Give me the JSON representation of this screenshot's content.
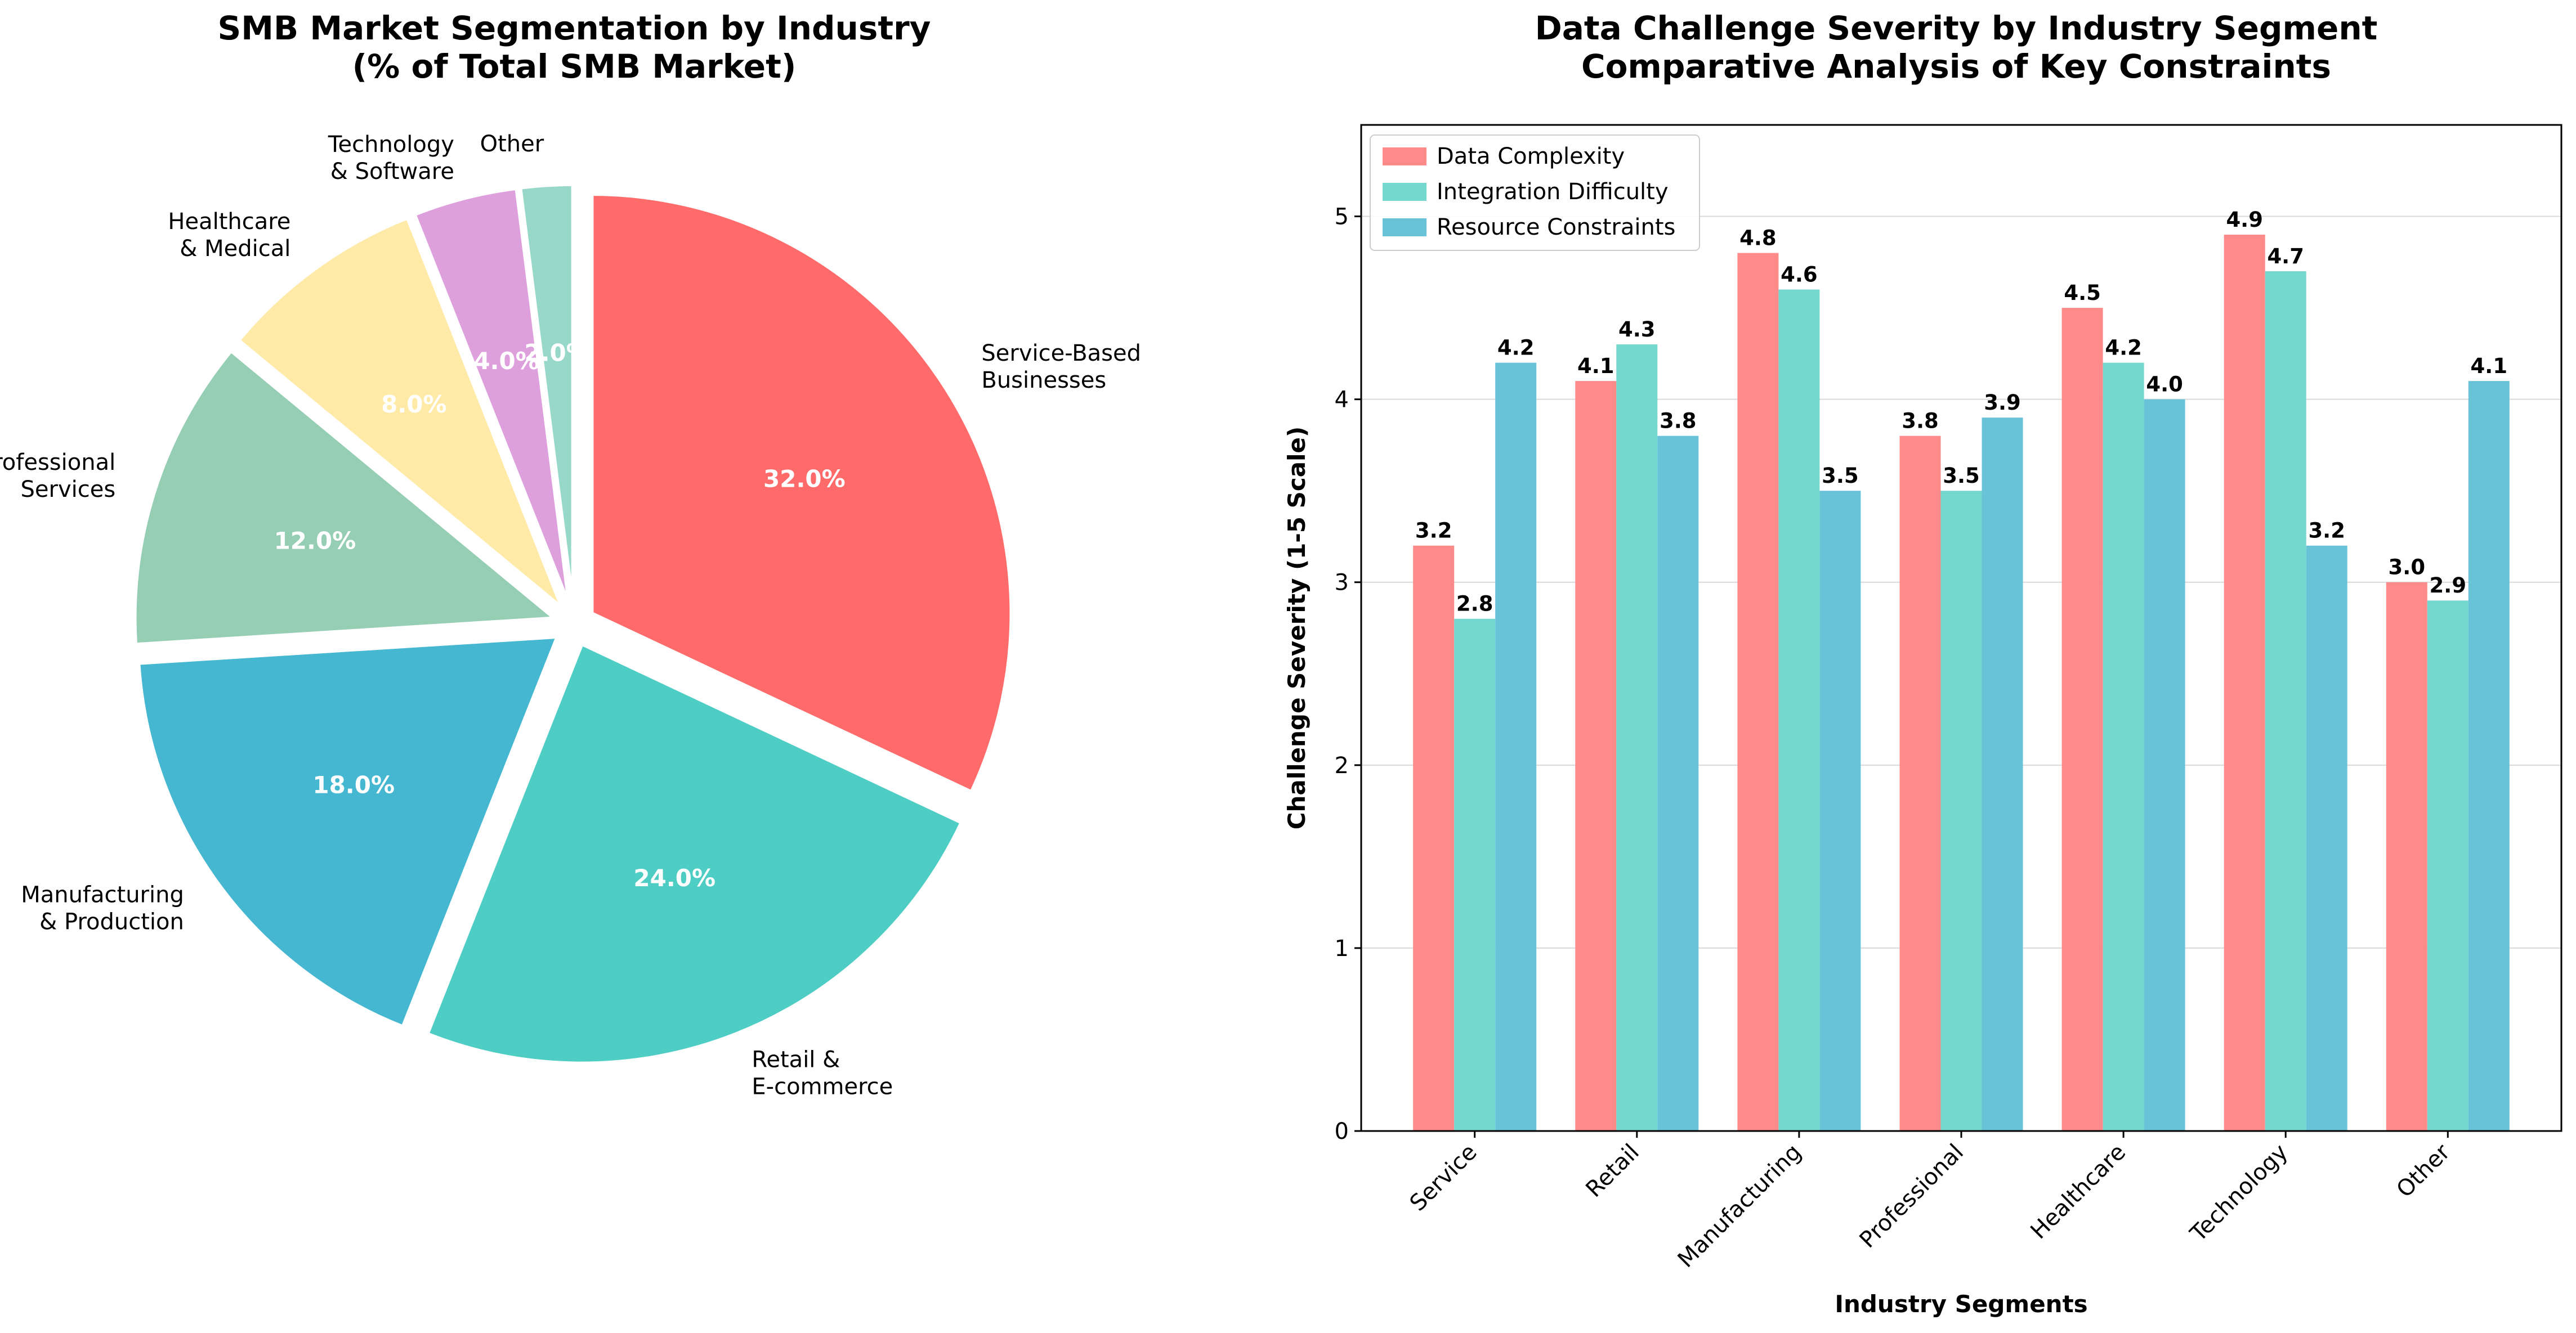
{
  "chart_data": [
    {
      "type": "pie",
      "title": "SMB Market Segmentation by Industry\n(% of Total SMB Market)",
      "start_angle_deg": 90,
      "direction": "clockwise",
      "slices": [
        {
          "label": "Service-Based\nBusinesses",
          "value": 32.0,
          "pct_label": "32.0%",
          "color": "#FF6B6B",
          "explode": 0.05
        },
        {
          "label": "Retail &\nE-commerce",
          "value": 24.0,
          "pct_label": "24.0%",
          "color": "#4ECDC4",
          "explode": 0.05
        },
        {
          "label": "Manufacturing\n& Production",
          "value": 18.0,
          "pct_label": "18.0%",
          "color": "#45B7D1",
          "explode": 0.05
        },
        {
          "label": "Professional\nServices",
          "value": 12.0,
          "pct_label": "12.0%",
          "color": "#96CEB4",
          "explode": 0.05
        },
        {
          "label": "Healthcare\n& Medical",
          "value": 8.0,
          "pct_label": "8.0%",
          "color": "#FFEAA7",
          "explode": 0.05
        },
        {
          "label": "Technology\n& Software",
          "value": 4.0,
          "pct_label": "4.0%",
          "color": "#DDA0DD",
          "explode": 0.05
        },
        {
          "label": "Other",
          "value": 2.0,
          "pct_label": "2.0%",
          "color": "#98D8C8",
          "explode": 0.05
        }
      ]
    },
    {
      "type": "bar",
      "title": "Data Challenge Severity by Industry Segment\nComparative Analysis of Key Constraints",
      "xlabel": "Industry Segments",
      "ylabel": "Challenge Severity (1-5 Scale)",
      "categories": [
        "Service",
        "Retail",
        "Manufacturing",
        "Professional",
        "Healthcare",
        "Technology",
        "Other"
      ],
      "ylim": [
        0,
        5.5
      ],
      "yticks": [
        0,
        1,
        2,
        3,
        4,
        5
      ],
      "grid": "y",
      "legend_position": "top-left",
      "series": [
        {
          "name": "Data Complexity",
          "color": "#FF8A8A",
          "values": [
            3.2,
            4.1,
            4.8,
            3.8,
            4.5,
            4.9,
            3.0
          ]
        },
        {
          "name": "Integration Difficulty",
          "color": "#74D8CF",
          "values": [
            2.8,
            4.3,
            4.6,
            3.5,
            4.2,
            4.7,
            2.9
          ]
        },
        {
          "name": "Resource Constraints",
          "color": "#69C3D8",
          "values": [
            4.2,
            3.8,
            3.5,
            3.9,
            4.0,
            3.2,
            4.1
          ]
        }
      ]
    }
  ]
}
